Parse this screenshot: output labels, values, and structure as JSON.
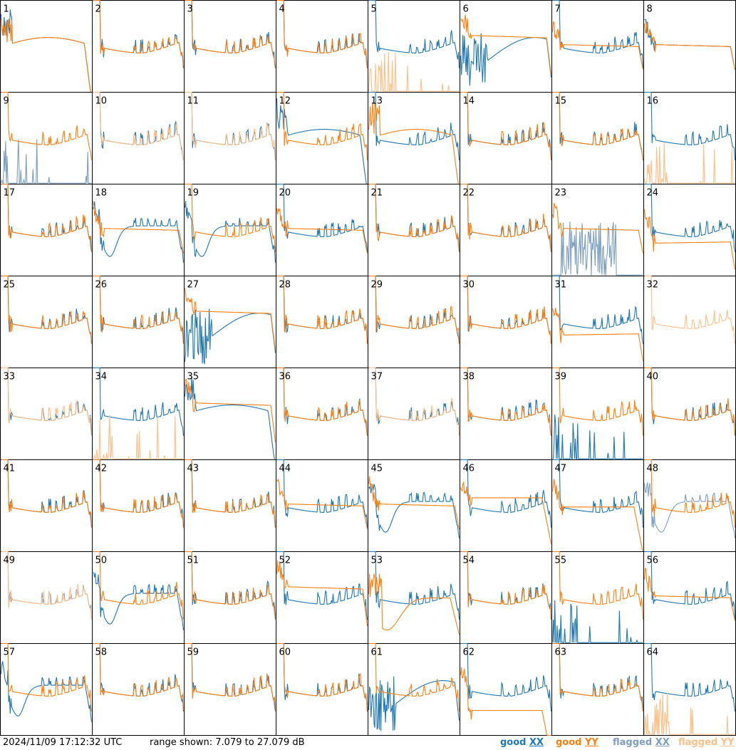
{
  "chart_data": {
    "type": "line",
    "grid": {
      "rows": 8,
      "cols": 8
    },
    "ylim_db": [
      7.079,
      27.079
    ],
    "colors": {
      "good_xx": "#1f77b4",
      "good_yy": "#ff7f0e",
      "flagged_xx": "#7f9fbf",
      "flagged_yy": "#ffbf87"
    },
    "panels": [
      {
        "label": "1",
        "xx": "drop",
        "yy": "drop",
        "note": "xx high plateau ~19, yy sag ~18"
      },
      {
        "label": "2",
        "xx": "std",
        "yy": "std"
      },
      {
        "label": "3",
        "xx": "std",
        "yy": "std"
      },
      {
        "label": "4",
        "xx": "std",
        "yy": "std"
      },
      {
        "label": "5",
        "xx": "std",
        "yy": "flagged_spikes"
      },
      {
        "label": "6",
        "xx": "noisy_low",
        "yy": "flat_high"
      },
      {
        "label": "7",
        "xx": "std",
        "yy": "flat_mid"
      },
      {
        "label": "8",
        "xx": "flat_mid",
        "yy": "flat_mid"
      },
      {
        "label": "9",
        "xx": "flagged_spikes",
        "yy": "std"
      },
      {
        "label": "10",
        "xx": "std",
        "yy": "flagged_flat"
      },
      {
        "label": "11",
        "xx": "std",
        "yy": "flagged_flat"
      },
      {
        "label": "12",
        "xx": "drop",
        "yy": "std"
      },
      {
        "label": "13",
        "xx": "std",
        "yy": "drop"
      },
      {
        "label": "14",
        "xx": "std",
        "yy": "std"
      },
      {
        "label": "15",
        "xx": "std",
        "yy": "std"
      },
      {
        "label": "16",
        "xx": "std",
        "yy": "flagged_spikes"
      },
      {
        "label": "17",
        "xx": "std",
        "yy": "std"
      },
      {
        "label": "18",
        "xx": "sag",
        "yy": "flat_mid"
      },
      {
        "label": "19",
        "xx": "sag",
        "yy": "std"
      },
      {
        "label": "20",
        "xx": "std",
        "yy": "flat_mid"
      },
      {
        "label": "21",
        "xx": "std",
        "yy": "std"
      },
      {
        "label": "22",
        "xx": "std",
        "yy": "std"
      },
      {
        "label": "23",
        "xx": "flagged_noise",
        "yy": "flat_mid"
      },
      {
        "label": "24",
        "xx": "std",
        "yy": "flat_low"
      },
      {
        "label": "25",
        "xx": "std",
        "yy": "std"
      },
      {
        "label": "26",
        "xx": "std",
        "yy": "std"
      },
      {
        "label": "27",
        "xx": "noisy_low",
        "yy": "flat_high"
      },
      {
        "label": "28",
        "xx": "std",
        "yy": "std"
      },
      {
        "label": "29",
        "xx": "std",
        "yy": "std"
      },
      {
        "label": "30",
        "xx": "std",
        "yy": "std"
      },
      {
        "label": "31",
        "xx": "std",
        "yy": "flat_low"
      },
      {
        "label": "32",
        "xx": "none",
        "yy": "flagged_flat"
      },
      {
        "label": "33",
        "xx": "std",
        "yy": "flagged_flat"
      },
      {
        "label": "34",
        "xx": "std",
        "yy": "flagged_spikes"
      },
      {
        "label": "35",
        "xx": "drop",
        "yy": "flat_high"
      },
      {
        "label": "36",
        "xx": "std",
        "yy": "std"
      },
      {
        "label": "37",
        "xx": "std",
        "yy": "flagged_flat"
      },
      {
        "label": "38",
        "xx": "std",
        "yy": "std"
      },
      {
        "label": "39",
        "xx": "spikes",
        "yy": "std"
      },
      {
        "label": "40",
        "xx": "std",
        "yy": "std"
      },
      {
        "label": "41",
        "xx": "std",
        "yy": "std"
      },
      {
        "label": "42",
        "xx": "std",
        "yy": "std"
      },
      {
        "label": "43",
        "xx": "std",
        "yy": "std"
      },
      {
        "label": "44",
        "xx": "std",
        "yy": "flat_mid"
      },
      {
        "label": "45",
        "xx": "sag",
        "yy": "flat_mid"
      },
      {
        "label": "46",
        "xx": "std",
        "yy": "flat_high_drop"
      },
      {
        "label": "47",
        "xx": "std",
        "yy": "flat_mid_drop"
      },
      {
        "label": "48",
        "xx": "flagged_sag",
        "yy": "std"
      },
      {
        "label": "49",
        "xx": "flagged_flat",
        "yy": "flagged_flat"
      },
      {
        "label": "50",
        "xx": "sag",
        "yy": "std"
      },
      {
        "label": "51",
        "xx": "std",
        "yy": "std"
      },
      {
        "label": "52",
        "xx": "std",
        "yy": "flat_high"
      },
      {
        "label": "53",
        "xx": "std",
        "yy": "deep_sag"
      },
      {
        "label": "54",
        "xx": "std",
        "yy": "std"
      },
      {
        "label": "55",
        "xx": "spikes",
        "yy": "std"
      },
      {
        "label": "56",
        "xx": "std",
        "yy": "flat_mid"
      },
      {
        "label": "57",
        "xx": "sag",
        "yy": "std"
      },
      {
        "label": "58",
        "xx": "std",
        "yy": "std"
      },
      {
        "label": "59",
        "xx": "std",
        "yy": "std"
      },
      {
        "label": "60",
        "xx": "std",
        "yy": "std"
      },
      {
        "label": "61",
        "xx": "noisy_low",
        "yy": "std"
      },
      {
        "label": "62",
        "xx": "std",
        "yy": "flat_low_drop"
      },
      {
        "label": "63",
        "xx": "std",
        "yy": "std"
      },
      {
        "label": "64",
        "xx": "std",
        "yy": "flagged_spikes"
      }
    ]
  },
  "footer": {
    "timestamp": "2024/11/09 17:12:32 UTC",
    "range_text": "range shown: 7.079 to 27.079 dB",
    "legend": [
      {
        "word": "good",
        "pol": "XX",
        "color": "#1f77b4"
      },
      {
        "word": "good",
        "pol": "YY",
        "color": "#ff7f0e"
      },
      {
        "word": "flagged",
        "pol": "XX",
        "color": "#7f9fbf"
      },
      {
        "word": "flagged",
        "pol": "YY",
        "color": "#ffbf87"
      }
    ]
  }
}
